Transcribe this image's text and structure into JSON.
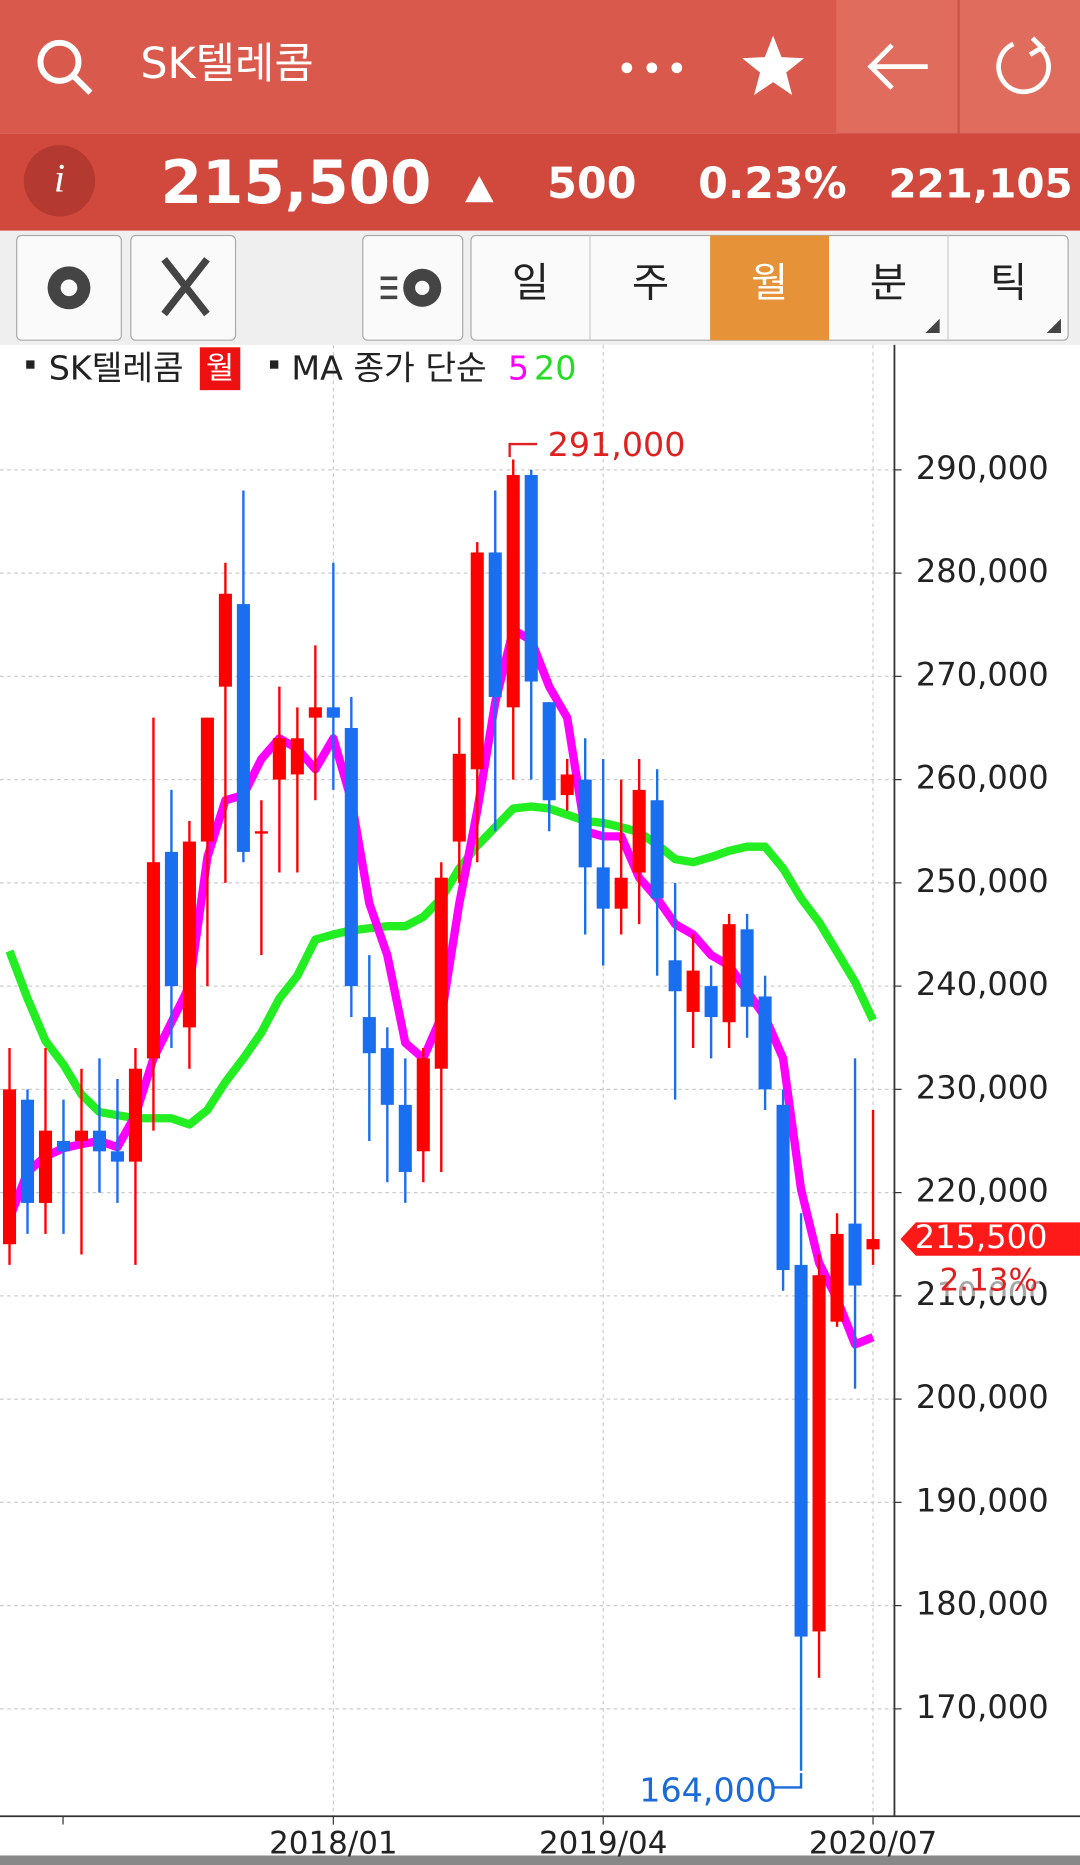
{
  "header": {
    "title": "SK텔레콤",
    "price": "215,500",
    "change": "500",
    "change_pct": "0.23%",
    "volume": "221,105"
  },
  "toolbar": {
    "tabs": [
      "일",
      "주",
      "월",
      "분",
      "틱"
    ]
  },
  "legend": {
    "symbol": "SK텔레콤",
    "period": "월",
    "ma_label": "MA 종가 단순"
  },
  "chart_data": {
    "type": "candlestick",
    "categories": [
      null,
      null,
      null,
      null,
      null,
      null,
      null,
      null,
      null,
      null,
      null,
      null,
      null,
      null,
      null,
      null,
      null,
      null,
      "2018/01",
      null,
      null,
      null,
      null,
      null,
      null,
      null,
      null,
      null,
      null,
      null,
      null,
      null,
      null,
      "2019/04",
      null,
      null,
      null,
      null,
      null,
      null,
      null,
      null,
      null,
      null,
      null,
      null,
      null,
      null,
      "2020/07"
    ],
    "open": [
      215000,
      229000,
      219000,
      225000,
      225000,
      226000,
      224000,
      223000,
      233000,
      253000,
      236000,
      254000,
      269000,
      277000,
      255000,
      260000,
      260500,
      266000,
      267000,
      265000,
      237000,
      234000,
      228500,
      224000,
      232000,
      254000,
      261000,
      282000,
      267000,
      289500,
      267500,
      258500,
      260000,
      251500,
      247500,
      251000,
      258000,
      242500,
      237500,
      240000,
      236500,
      245500,
      239000,
      228500,
      213000,
      177500,
      207500,
      217000,
      214500
    ],
    "high": [
      234000,
      230000,
      234000,
      229000,
      232000,
      233000,
      231000,
      234000,
      266000,
      259000,
      256000,
      266000,
      281000,
      288000,
      258000,
      269000,
      267000,
      273000,
      281000,
      268000,
      243000,
      236000,
      233000,
      234000,
      252000,
      266000,
      283000,
      288000,
      291000,
      290000,
      267500,
      262000,
      264000,
      262000,
      260000,
      262000,
      261000,
      250000,
      245000,
      242000,
      247000,
      247000,
      241000,
      230000,
      218000,
      214000,
      218000,
      233000,
      228000
    ],
    "low": [
      213000,
      216000,
      216000,
      216000,
      214000,
      220000,
      219000,
      213000,
      226000,
      234000,
      232000,
      240000,
      250000,
      252000,
      243000,
      251000,
      251000,
      258000,
      259000,
      237000,
      225000,
      221000,
      219000,
      221000,
      222000,
      250000,
      252000,
      255000,
      260000,
      260000,
      255000,
      257000,
      245000,
      242000,
      245000,
      246000,
      241000,
      229000,
      234000,
      233000,
      234000,
      235000,
      228000,
      210500,
      164000,
      173000,
      207000,
      201000,
      213000
    ],
    "close": [
      230000,
      219000,
      226000,
      224000,
      226000,
      224000,
      223000,
      232000,
      252000,
      240000,
      254000,
      266000,
      278000,
      253000,
      255000,
      264000,
      264000,
      267000,
      266000,
      240000,
      233500,
      228500,
      222000,
      233000,
      250500,
      262500,
      282000,
      268000,
      289500,
      269500,
      258000,
      260500,
      251500,
      247500,
      250500,
      259000,
      248500,
      239500,
      241500,
      237000,
      246000,
      238000,
      230000,
      212500,
      177000,
      212000,
      216000,
      211000,
      215500
    ],
    "up_color": "#ff0000",
    "down_color": "#1a6ef0",
    "series": [
      {
        "name": "5",
        "color": "#ff00ff",
        "values": [
          217500,
          222000,
          223500,
          224300,
          224700,
          225000,
          224400,
          227500,
          233000,
          236500,
          240000,
          252500,
          258000,
          258500,
          262000,
          264000,
          263000,
          261000,
          264000,
          258000,
          248000,
          243000,
          234500,
          233000,
          237000,
          248000,
          257000,
          267500,
          274500,
          273500,
          269000,
          266000,
          255000,
          254500,
          254500,
          250500,
          248500,
          246000,
          245000,
          243000,
          242000,
          239500,
          237000,
          233000,
          220300,
          213200,
          209700,
          205300,
          206000
        ]
      },
      {
        "name": "20",
        "color": "#22ee22",
        "values": [
          243400,
          238800,
          234700,
          232400,
          229500,
          227800,
          227500,
          227200,
          227200,
          227200,
          226600,
          228000,
          230700,
          233000,
          235500,
          238800,
          241000,
          244500,
          245000,
          245400,
          245600,
          245800,
          245800,
          246700,
          248500,
          251400,
          253600,
          255400,
          257200,
          257400,
          257200,
          256600,
          256000,
          255800,
          255400,
          254900,
          253700,
          252300,
          252000,
          252500,
          253100,
          253500,
          253500,
          251400,
          248500,
          246200,
          243300,
          240400,
          236700
        ]
      }
    ],
    "ylim": [
      159600,
      302100
    ],
    "yticks": [
      {
        "value": 170000,
        "label": "170,000"
      },
      {
        "value": 180000,
        "label": "180,000"
      },
      {
        "value": 190000,
        "label": "190,000"
      },
      {
        "value": 200000,
        "label": "200,000"
      },
      {
        "value": 210000,
        "label": "210,000"
      },
      {
        "value": 220000,
        "label": "220,000"
      },
      {
        "value": 230000,
        "label": "230,000"
      },
      {
        "value": 240000,
        "label": "240,000"
      },
      {
        "value": 250000,
        "label": "250,000"
      },
      {
        "value": 260000,
        "label": "260,000"
      },
      {
        "value": 270000,
        "label": "270,000"
      },
      {
        "value": 280000,
        "label": "280,000"
      },
      {
        "value": 290000,
        "label": "290,000"
      }
    ],
    "grid": true,
    "max_label": {
      "value": 291000,
      "label": "291,000"
    },
    "min_label": {
      "value": 164000,
      "label": "164,000"
    },
    "last_price": {
      "value": 215500,
      "label": "215,500"
    },
    "last_change": "2.13%"
  }
}
